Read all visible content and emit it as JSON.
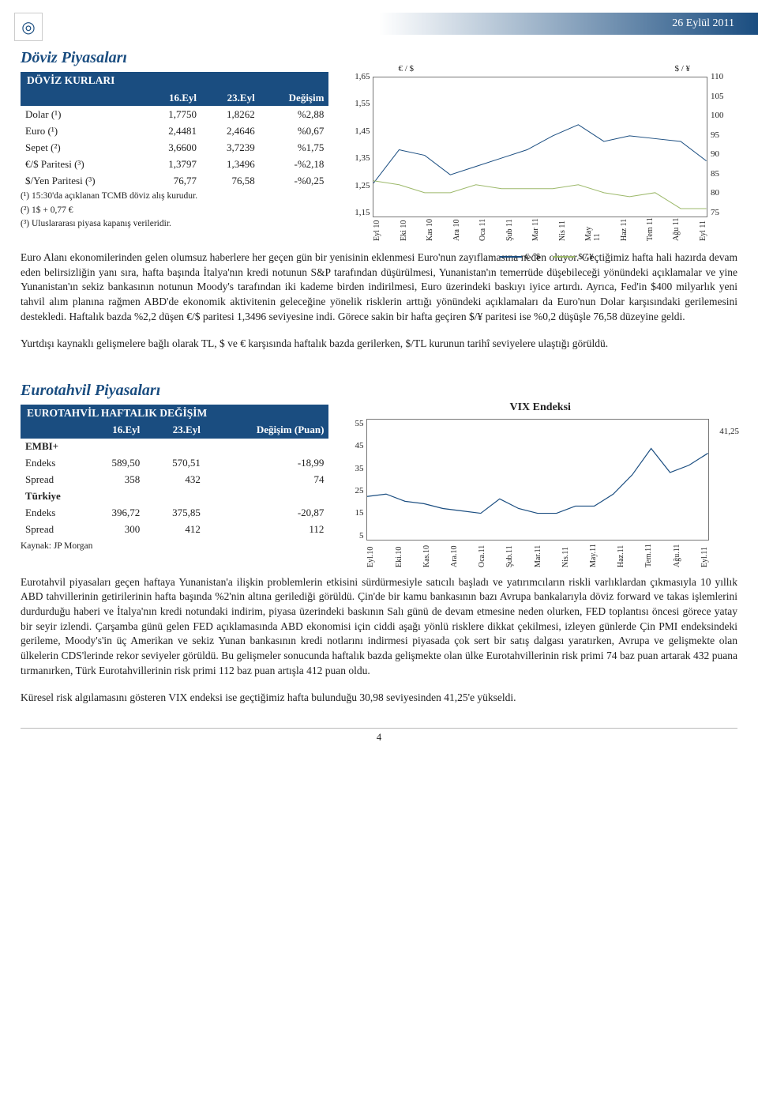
{
  "header": {
    "date": "26 Eylül 2011"
  },
  "doviz": {
    "title": "Döviz Piyasaları",
    "table_title": "DÖVİZ KURLARI",
    "columns": [
      "",
      "16.Eyl",
      "23.Eyl",
      "Değişim"
    ],
    "rows": [
      [
        "Dolar (¹)",
        "1,7750",
        "1,8262",
        "%2,88"
      ],
      [
        "Euro (¹)",
        "2,4481",
        "2,4646",
        "%0,67"
      ],
      [
        "Sepet (²)",
        "3,6600",
        "3,7239",
        "%1,75"
      ],
      [
        "€/$ Paritesi (³)",
        "1,3797",
        "1,3496",
        "-%2,18"
      ],
      [
        "$/Yen Paritesi (³)",
        "76,77",
        "76,58",
        "-%0,25"
      ]
    ],
    "footnotes": [
      "(¹) 15:30'da açıklanan TCMB döviz alış kurudur.",
      "(²) 1$ + 0,77 €",
      "(³) Uluslararası piyasa kapanış verileridir."
    ],
    "chart": {
      "type": "line-dual-axis",
      "left_label": "€ / $",
      "right_label": "$ / ¥",
      "y_left_ticks": [
        "1,65",
        "1,55",
        "1,45",
        "1,35",
        "1,25",
        "1,15"
      ],
      "y_right_ticks": [
        "110",
        "105",
        "100",
        "95",
        "90",
        "85",
        "80",
        "75"
      ],
      "x_labels": [
        "Eyl 10",
        "Eki 10",
        "Kas 10",
        "Ara 10",
        "Oca 11",
        "Şub 11",
        "Mar 11",
        "Nis 11",
        "May 11",
        "Haz 11",
        "Tem 11",
        "Ağu 11",
        "Eyl 11"
      ],
      "series": [
        {
          "name": "€ / $",
          "color": "#1a4d80",
          "values": [
            1.27,
            1.39,
            1.37,
            1.3,
            1.33,
            1.36,
            1.39,
            1.44,
            1.48,
            1.42,
            1.44,
            1.43,
            1.42,
            1.35
          ]
        },
        {
          "name": "$ / ¥",
          "color": "#9db96b",
          "values": [
            84,
            83,
            81,
            81,
            83,
            82,
            82,
            82,
            83,
            81,
            80,
            81,
            77,
            77
          ]
        }
      ],
      "background_color": "#ffffff",
      "left_ylim": [
        1.15,
        1.65
      ],
      "right_ylim": [
        75,
        110
      ]
    },
    "para1": "Euro Alanı ekonomilerinden gelen olumsuz haberlere her geçen gün bir yenisinin eklenmesi Euro'nun zayıflamasına neden oluyor. Geçtiğimiz hafta hali hazırda devam eden belirsizliğin yanı sıra, hafta başında İtalya'nın kredi notunun S&P tarafından düşürülmesi, Yunanistan'ın temerrüde düşebileceği yönündeki açıklamalar ve yine Yunanistan'ın sekiz bankasının notunun Moody's tarafından iki kademe birden indirilmesi, Euro üzerindeki baskıyı iyice artırdı. Ayrıca, Fed'in $400 milyarlık yeni tahvil alım planına rağmen ABD'de ekonomik aktivitenin geleceğine yönelik risklerin arttığı yönündeki açıklamaları da Euro'nun Dolar karşısındaki gerilemesini destekledi. Haftalık bazda %2,2 düşen €/$ paritesi 1,3496 seviyesine indi. Görece sakin bir hafta geçiren $/¥ paritesi ise %0,2 düşüşle 76,58 düzeyine geldi.",
    "para2": "Yurtdışı kaynaklı gelişmelere bağlı olarak TL, $ ve € karşısında haftalık bazda gerilerken, $/TL kurunun tarihî seviyelere ulaştığı görüldü."
  },
  "euro": {
    "title": "Eurotahvil Piyasaları",
    "table_title": "EUROTAHVİL HAFTALIK DEĞİŞİM",
    "columns": [
      "",
      "16.Eyl",
      "23.Eyl",
      "Değişim (Puan)"
    ],
    "cat1": "EMBI+",
    "cat1_rows": [
      [
        "Endeks",
        "589,50",
        "570,51",
        "-18,99"
      ],
      [
        "Spread",
        "358",
        "432",
        "74"
      ]
    ],
    "cat2": "Türkiye",
    "cat2_rows": [
      [
        "Endeks",
        "396,72",
        "375,85",
        "-20,87"
      ],
      [
        "Spread",
        "300",
        "412",
        "112"
      ]
    ],
    "source": "Kaynak: JP Morgan",
    "chart": {
      "type": "line",
      "title": "VIX Endeksi",
      "end_label": "41,25",
      "y_ticks": [
        "55",
        "45",
        "35",
        "25",
        "15",
        "5"
      ],
      "x_labels": [
        "Eyl.10",
        "Eki.10",
        "Kas.10",
        "Ara.10",
        "Oca.11",
        "Şub.11",
        "Mar.11",
        "Nis.11",
        "May.11",
        "Haz.11",
        "Tem.11",
        "Ağu.11",
        "Eyl.11"
      ],
      "color": "#1a4d80",
      "values": [
        23,
        24,
        21,
        20,
        18,
        17,
        16,
        22,
        18,
        16,
        16,
        19,
        19,
        24,
        32,
        43,
        33,
        36,
        41
      ],
      "ylim": [
        5,
        55
      ],
      "background_color": "#ffffff"
    },
    "para1": "Eurotahvil piyasaları geçen haftaya Yunanistan'a ilişkin problemlerin etkisini sürdürmesiyle satıcılı başladı ve yatırımcıların riskli varlıklardan çıkmasıyla 10 yıllık ABD tahvillerinin getirilerinin hafta başında %2'nin altına gerilediği görüldü. Çin'de bir kamu bankasının bazı Avrupa bankalarıyla döviz forward ve takas işlemlerini durdurduğu haberi ve İtalya'nın kredi notundaki indirim, piyasa üzerindeki baskının Salı günü de devam etmesine neden olurken, FED toplantısı öncesi görece yatay bir seyir izlendi. Çarşamba günü gelen FED açıklamasında ABD ekonomisi için ciddi aşağı yönlü risklere dikkat çekilmesi, izleyen günlerde Çin PMI endeksindeki gerileme, Moody's'in üç Amerikan ve sekiz Yunan bankasının kredi notlarını indirmesi piyasada çok sert bir satış dalgası yaratırken, Avrupa ve gelişmekte olan ülkelerin CDS'lerinde rekor seviyeler görüldü. Bu gelişmeler sonucunda haftalık bazda gelişmekte olan ülke Eurotahvillerinin risk primi 74 baz puan artarak 432 puana tırmanırken, Türk Eurotahvillerinin risk primi 112 baz puan artışla 412 puan oldu.",
    "para2": "Küresel risk algılamasını gösteren VIX endeksi ise geçtiğimiz hafta bulunduğu 30,98 seviyesinden 41,25'e yükseldi."
  },
  "pagenum": "4"
}
